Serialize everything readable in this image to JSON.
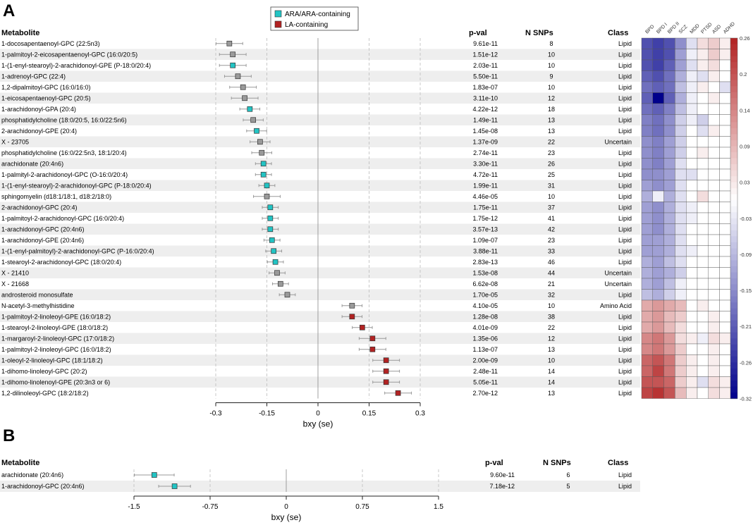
{
  "panelA": {
    "label": "A"
  },
  "panelB": {
    "label": "B"
  },
  "headers": {
    "metabolite": "Metabolite",
    "pval": "p-val",
    "nsnps": "N SNPs",
    "class": "Class"
  },
  "legend": [
    {
      "name": "ARA/ARA-containing",
      "color": "#22c4c4"
    },
    {
      "name": "LA-containing",
      "color": "#b22222"
    }
  ],
  "colors": {
    "other": "#9a9a9a",
    "ara": "#22c4c4",
    "la": "#b22222",
    "stripe": "#eeeeee",
    "heat_low": "#00008b",
    "heat_high": "#b22222"
  },
  "chart_data": [
    {
      "type": "scatter",
      "subtype": "forest",
      "xlabel": "bxy (se)",
      "xlim": [
        -0.3,
        0.3
      ],
      "xticks": [
        -0.3,
        -0.15,
        0,
        0.15,
        0.3
      ],
      "xtick_labels": [
        "-0.3",
        "-0.15",
        "0",
        "0.15",
        "0.3"
      ],
      "rows": [
        {
          "name": "1-docosapentaenoyl-GPC (22:5n3)",
          "b": -0.26,
          "se": 0.02,
          "group": "other",
          "pval": "9.61e-11",
          "nsnps": "8",
          "cls": "Lipid"
        },
        {
          "name": "1-palmitoyl-2-eicosapentaenoyl-GPC (16:0/20:5)",
          "b": -0.25,
          "se": 0.02,
          "group": "other",
          "pval": "1.51e-12",
          "nsnps": "10",
          "cls": "Lipid"
        },
        {
          "name": "1-(1-enyl-stearoyl)-2-arachidonoyl-GPE (P-18:0/20:4)",
          "b": -0.25,
          "se": 0.02,
          "group": "ara",
          "pval": "2.03e-11",
          "nsnps": "10",
          "cls": "Lipid"
        },
        {
          "name": "1-adrenoyl-GPC (22:4)",
          "b": -0.235,
          "se": 0.02,
          "group": "other",
          "pval": "5.50e-11",
          "nsnps": "9",
          "cls": "Lipid"
        },
        {
          "name": "1,2-dipalmitoyl-GPC (16:0/16:0)",
          "b": -0.22,
          "se": 0.02,
          "group": "other",
          "pval": "1.83e-07",
          "nsnps": "10",
          "cls": "Lipid"
        },
        {
          "name": "1-eicosapentaenoyl-GPC (20:5)",
          "b": -0.215,
          "se": 0.02,
          "group": "other",
          "pval": "3.11e-10",
          "nsnps": "12",
          "cls": "Lipid"
        },
        {
          "name": "1-arachidonoyl-GPA (20:4)",
          "b": -0.2,
          "se": 0.015,
          "group": "ara",
          "pval": "4.22e-12",
          "nsnps": "18",
          "cls": "Lipid"
        },
        {
          "name": "phosphatidylcholine (18:0/20:5, 16:0/22:5n6)",
          "b": -0.19,
          "se": 0.015,
          "group": "other",
          "pval": "1.49e-11",
          "nsnps": "13",
          "cls": "Lipid"
        },
        {
          "name": "2-arachidonoyl-GPE (20:4)",
          "b": -0.18,
          "se": 0.015,
          "group": "ara",
          "pval": "1.45e-08",
          "nsnps": "13",
          "cls": "Lipid"
        },
        {
          "name": "X - 23705",
          "b": -0.17,
          "se": 0.015,
          "group": "other",
          "pval": "1.37e-09",
          "nsnps": "22",
          "cls": "Uncertain"
        },
        {
          "name": "phosphatidylcholine (16:0/22:5n3, 18:1/20:4)",
          "b": -0.165,
          "se": 0.015,
          "group": "other",
          "pval": "2.74e-11",
          "nsnps": "23",
          "cls": "Lipid"
        },
        {
          "name": "arachidonate (20:4n6)",
          "b": -0.16,
          "se": 0.012,
          "group": "ara",
          "pval": "3.30e-11",
          "nsnps": "26",
          "cls": "Lipid"
        },
        {
          "name": "1-palmityl-2-arachidonoyl-GPC (O-16:0/20:4)",
          "b": -0.16,
          "se": 0.012,
          "group": "ara",
          "pval": "4.72e-11",
          "nsnps": "25",
          "cls": "Lipid"
        },
        {
          "name": "1-(1-enyl-stearoyl)-2-arachidonoyl-GPC (P-18:0/20:4)",
          "b": -0.15,
          "se": 0.012,
          "group": "ara",
          "pval": "1.99e-11",
          "nsnps": "31",
          "cls": "Lipid"
        },
        {
          "name": "sphingomyelin (d18:1/18:1, d18:2/18:0)",
          "b": -0.15,
          "se": 0.02,
          "group": "other",
          "pval": "4.46e-05",
          "nsnps": "10",
          "cls": "Lipid"
        },
        {
          "name": "2-arachidonoyl-GPC (20:4)",
          "b": -0.14,
          "se": 0.012,
          "group": "ara",
          "pval": "1.75e-11",
          "nsnps": "37",
          "cls": "Lipid"
        },
        {
          "name": "1-palmitoyl-2-arachidonoyl-GPC (16:0/20:4)",
          "b": -0.14,
          "se": 0.012,
          "group": "ara",
          "pval": "1.75e-12",
          "nsnps": "41",
          "cls": "Lipid"
        },
        {
          "name": "1-arachidonoyl-GPC (20:4n6)",
          "b": -0.14,
          "se": 0.012,
          "group": "ara",
          "pval": "3.57e-13",
          "nsnps": "42",
          "cls": "Lipid"
        },
        {
          "name": "1-arachidonoyl-GPE (20:4n6)",
          "b": -0.135,
          "se": 0.012,
          "group": "ara",
          "pval": "1.09e-07",
          "nsnps": "23",
          "cls": "Lipid"
        },
        {
          "name": "1-(1-enyl-palmitoyl)-2-arachidonoyl-GPC (P-16:0/20:4)",
          "b": -0.13,
          "se": 0.012,
          "group": "ara",
          "pval": "3.88e-11",
          "nsnps": "33",
          "cls": "Lipid"
        },
        {
          "name": "1-stearoyl-2-arachidonoyl-GPC (18:0/20:4)",
          "b": -0.125,
          "se": 0.012,
          "group": "ara",
          "pval": "2.83e-13",
          "nsnps": "46",
          "cls": "Lipid"
        },
        {
          "name": "X - 21410",
          "b": -0.12,
          "se": 0.012,
          "group": "other",
          "pval": "1.53e-08",
          "nsnps": "44",
          "cls": "Uncertain"
        },
        {
          "name": "X - 21668",
          "b": -0.11,
          "se": 0.012,
          "group": "other",
          "pval": "6.62e-08",
          "nsnps": "21",
          "cls": "Uncertain"
        },
        {
          "name": "androsteroid monosulfate",
          "b": -0.09,
          "se": 0.012,
          "group": "other",
          "pval": "1.70e-05",
          "nsnps": "32",
          "cls": "Lipid"
        },
        {
          "name": "N-acetyl-3-methylhistidine",
          "b": 0.1,
          "se": 0.015,
          "group": "other",
          "pval": "4.10e-05",
          "nsnps": "10",
          "cls": "Amino Acid"
        },
        {
          "name": "1-palmitoyl-2-linoleoyl-GPE (16:0/18:2)",
          "b": 0.1,
          "se": 0.015,
          "group": "la",
          "pval": "1.28e-08",
          "nsnps": "38",
          "cls": "Lipid"
        },
        {
          "name": "1-stearoyl-2-linoleoyl-GPE (18:0/18:2)",
          "b": 0.13,
          "se": 0.015,
          "group": "la",
          "pval": "4.01e-09",
          "nsnps": "22",
          "cls": "Lipid"
        },
        {
          "name": "1-margaroyl-2-linoleoyl-GPC (17:0/18:2)",
          "b": 0.16,
          "se": 0.02,
          "group": "la",
          "pval": "1.35e-06",
          "nsnps": "12",
          "cls": "Lipid"
        },
        {
          "name": "1-palmitoyl-2-linoleoyl-GPC (16:0/18:2)",
          "b": 0.16,
          "se": 0.02,
          "group": "la",
          "pval": "1.13e-07",
          "nsnps": "13",
          "cls": "Lipid"
        },
        {
          "name": "1-oleoyl-2-linoleoyl-GPC (18:1/18:2)",
          "b": 0.2,
          "se": 0.02,
          "group": "la",
          "pval": "2.00e-09",
          "nsnps": "10",
          "cls": "Lipid"
        },
        {
          "name": "1-dihomo-linoleoyl-GPC (20:2)",
          "b": 0.2,
          "se": 0.02,
          "group": "la",
          "pval": "2.48e-11",
          "nsnps": "14",
          "cls": "Lipid"
        },
        {
          "name": "1-dihomo-linolenoyl-GPE (20:3n3 or 6)",
          "b": 0.2,
          "se": 0.02,
          "group": "la",
          "pval": "5.05e-11",
          "nsnps": "14",
          "cls": "Lipid"
        },
        {
          "name": "1,2-dilinoleoyl-GPC (18:2/18:2)",
          "b": 0.235,
          "se": 0.02,
          "group": "la",
          "pval": "2.70e-12",
          "nsnps": "13",
          "cls": "Lipid"
        }
      ]
    },
    {
      "type": "heatmap",
      "columns": [
        "BPD",
        "BPD I",
        "BPD II",
        "SCZ",
        "MDD",
        "PTSD",
        "ASD",
        "ADHD"
      ],
      "values": [
        [
          -0.22,
          -0.24,
          -0.22,
          -0.14,
          -0.04,
          0.04,
          0.06,
          0.02
        ],
        [
          -0.22,
          -0.24,
          -0.22,
          -0.12,
          -0.02,
          0.02,
          0.06,
          0.02
        ],
        [
          -0.22,
          -0.24,
          -0.2,
          -0.12,
          -0.04,
          0.02,
          0.04,
          0.0
        ],
        [
          -0.2,
          -0.22,
          -0.18,
          -0.1,
          -0.02,
          -0.04,
          0.02,
          0.0
        ],
        [
          -0.18,
          -0.2,
          -0.18,
          -0.08,
          -0.02,
          0.02,
          0.0,
          -0.04
        ],
        [
          -0.2,
          -0.32,
          -0.2,
          -0.1,
          -0.02,
          0.0,
          0.02,
          0.0
        ],
        [
          -0.18,
          -0.2,
          -0.16,
          -0.08,
          -0.02,
          0.0,
          0.0,
          0.0
        ],
        [
          -0.16,
          -0.18,
          -0.14,
          -0.06,
          -0.02,
          -0.06,
          0.0,
          0.0
        ],
        [
          -0.16,
          -0.18,
          -0.14,
          -0.06,
          0.0,
          -0.04,
          0.02,
          0.0
        ],
        [
          -0.14,
          -0.16,
          -0.12,
          -0.06,
          0.0,
          0.0,
          0.0,
          0.0
        ],
        [
          -0.14,
          -0.16,
          -0.12,
          -0.06,
          0.0,
          0.02,
          0.0,
          0.0
        ],
        [
          -0.14,
          -0.16,
          -0.12,
          -0.04,
          0.0,
          0.0,
          0.0,
          0.0
        ],
        [
          -0.14,
          -0.14,
          -0.12,
          -0.04,
          -0.04,
          0.0,
          0.0,
          0.0
        ],
        [
          -0.12,
          -0.14,
          -0.12,
          -0.04,
          0.0,
          0.0,
          0.0,
          0.0
        ],
        [
          -0.1,
          -0.02,
          -0.1,
          -0.04,
          0.0,
          0.04,
          0.0,
          0.0
        ],
        [
          -0.12,
          -0.14,
          -0.1,
          -0.04,
          -0.02,
          0.0,
          0.0,
          0.0
        ],
        [
          -0.12,
          -0.14,
          -0.1,
          -0.04,
          -0.02,
          0.0,
          0.0,
          0.0
        ],
        [
          -0.12,
          -0.14,
          -0.1,
          -0.04,
          0.0,
          0.0,
          0.0,
          0.0
        ],
        [
          -0.12,
          -0.12,
          -0.1,
          -0.04,
          0.0,
          0.0,
          0.0,
          0.0
        ],
        [
          -0.12,
          -0.12,
          -0.1,
          -0.04,
          -0.02,
          0.0,
          0.0,
          0.0
        ],
        [
          -0.1,
          -0.12,
          -0.08,
          -0.04,
          0.0,
          0.0,
          0.0,
          0.0
        ],
        [
          -0.1,
          -0.12,
          -0.1,
          -0.06,
          0.0,
          0.0,
          0.0,
          0.0
        ],
        [
          -0.1,
          -0.12,
          -0.08,
          -0.02,
          0.0,
          0.0,
          0.0,
          0.0
        ],
        [
          -0.08,
          -0.1,
          -0.06,
          -0.02,
          0.0,
          0.0,
          0.0,
          0.0
        ],
        [
          0.1,
          0.12,
          0.1,
          0.08,
          0.0,
          0.02,
          0.0,
          0.0
        ],
        [
          0.1,
          0.12,
          0.08,
          0.06,
          0.0,
          0.0,
          0.02,
          0.0
        ],
        [
          0.1,
          0.12,
          0.08,
          0.04,
          0.0,
          0.0,
          0.02,
          0.0
        ],
        [
          0.14,
          0.16,
          0.12,
          0.04,
          0.02,
          -0.02,
          0.04,
          0.02
        ],
        [
          0.14,
          0.16,
          0.12,
          0.06,
          0.0,
          0.0,
          0.02,
          0.0
        ],
        [
          0.18,
          0.2,
          0.16,
          0.06,
          0.02,
          0.0,
          0.02,
          0.0
        ],
        [
          0.18,
          0.22,
          0.16,
          0.06,
          0.02,
          0.0,
          0.02,
          0.0
        ],
        [
          0.2,
          0.2,
          0.18,
          0.06,
          0.02,
          -0.04,
          0.04,
          0.02
        ],
        [
          0.22,
          0.24,
          0.2,
          0.08,
          0.02,
          0.0,
          0.04,
          0.02
        ]
      ],
      "vlim": [
        -0.32,
        0.26
      ],
      "colorbar_ticks": [
        "0.26",
        "0.2",
        "0.14",
        "0.09",
        "0.03",
        "-0.03",
        "-0.09",
        "-0.15",
        "-0.21",
        "-0.26",
        "-0.32"
      ]
    },
    {
      "type": "scatter",
      "subtype": "forest",
      "xlabel": "bxy (se)",
      "xlim": [
        -1.5,
        1.5
      ],
      "xticks": [
        -1.5,
        -0.75,
        0,
        0.75,
        1.5
      ],
      "xtick_labels": [
        "-1.5",
        "-0.75",
        "0",
        "0.75",
        "1.5"
      ],
      "rows": [
        {
          "name": "arachidonate (20:4n6)",
          "b": -1.3,
          "se": 0.1,
          "group": "ara",
          "pval": "9.60e-11",
          "nsnps": "6",
          "cls": "Lipid"
        },
        {
          "name": "1-arachidonoyl-GPC (20:4n6)",
          "b": -1.1,
          "se": 0.08,
          "group": "ara",
          "pval": "7.18e-12",
          "nsnps": "5",
          "cls": "Lipid"
        }
      ]
    }
  ]
}
